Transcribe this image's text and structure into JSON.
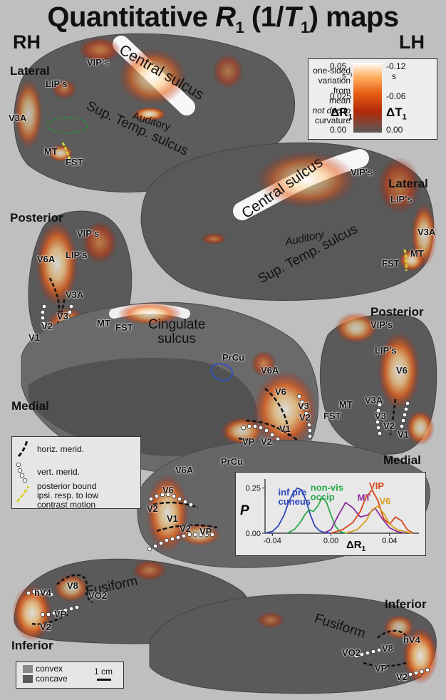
{
  "title": {
    "main": "Quantitative ",
    "r": "R",
    "r_sub": "1",
    "mid": " (1/",
    "t": "T",
    "t_sub": "1",
    "end": ") maps"
  },
  "hemispheres": {
    "right": "RH",
    "left": "LH"
  },
  "views": {
    "rh_lateral": "Lateral",
    "lh_lateral": "Lateral",
    "rh_posterior": "Posterior",
    "lh_posterior": "Posterior",
    "rh_medial": "Medial",
    "lh_medial": "Medial",
    "rh_inferior": "Inferior",
    "lh_inferior": "Inferior"
  },
  "colorbar": {
    "description": [
      "one-sided",
      "variation",
      "from mean",
      "not due to",
      "curvature"
    ],
    "r_ticks": [
      "0.05",
      "0.025",
      "0.00"
    ],
    "r_unit": "s⁻¹",
    "t_ticks": [
      "-0.12",
      "-0.06",
      "0.00"
    ],
    "t_unit": "s",
    "r_label": "ΔR",
    "r_label_sub": "1",
    "t_label": "ΔT",
    "t_label_sub": "1",
    "colors": [
      "#5a5a5a",
      "#b02a0a",
      "#e65a10",
      "#ffb060",
      "#ffffff"
    ]
  },
  "sulci": {
    "rh_central": "Central sulcus",
    "rh_sts": "Sup. Temp. sulcus",
    "rh_auditory": "Auditory",
    "lh_central": "Central sulcus",
    "lh_sts": "Sup. Temp. sulcus",
    "lh_auditory": "Auditory",
    "cingulate": "Cingulate\nsulcus",
    "rh_fusiform": "Fusiform",
    "lh_fusiform": "Fusiform"
  },
  "areas": {
    "rh_lat": [
      "VIP's",
      "LIP's",
      "V3A",
      "MT",
      "FST"
    ],
    "lh_lat": [
      "VIP's",
      "LIP's",
      "V3A",
      "MT",
      "FST"
    ],
    "rh_post": [
      "VIP's",
      "V6A",
      "LIP's",
      "V3A",
      "V3",
      "V2",
      "V1",
      "MT",
      "FST"
    ],
    "lh_post": [
      "VIP's",
      "LIP's",
      "V6",
      "MT",
      "V3A",
      "V3",
      "V2",
      "V1",
      "FST"
    ],
    "medial": [
      "PrCu",
      "V6A",
      "V6",
      "V3",
      "V2",
      "V1",
      "VP",
      "V2",
      "PrCu"
    ],
    "medial2": [
      "V6A",
      "V6",
      "V2",
      "V1",
      "V2",
      "VP"
    ],
    "rh_inf": [
      "hV4",
      "V8",
      "VO2",
      "VP",
      "V2"
    ],
    "lh_inf": [
      "hV4",
      "V8",
      "VO2",
      "VP",
      "V2"
    ]
  },
  "legend": {
    "horiz": "horiz. merid.",
    "vert": "vert. merid.",
    "bound": [
      "posterior bound",
      "ipsi. resp. to low",
      "contrast motion"
    ]
  },
  "convex_legend": {
    "convex": "convex",
    "concave": "concave",
    "scale": "1 cm"
  },
  "chart_data": {
    "type": "line",
    "ylabel": "P",
    "xlabel": "ΔR",
    "xlabel_sub": "1",
    "x_ticks": [
      -0.04,
      0.0,
      0.04
    ],
    "x_tick_labels": [
      "-0.04",
      "0.00",
      "0.04"
    ],
    "y_ticks": [
      0.0,
      0.25
    ],
    "y_tick_labels": [
      "0.00",
      "0.25"
    ],
    "xlim": [
      -0.045,
      0.06
    ],
    "ylim": [
      0,
      0.3
    ],
    "series": [
      {
        "name": "inf pre\ncuneus",
        "color": "#2f47b8",
        "x": [
          -0.045,
          -0.04,
          -0.036,
          -0.032,
          -0.029,
          -0.026,
          -0.023,
          -0.02,
          -0.017,
          -0.014,
          -0.011,
          -0.008,
          -0.005,
          0.0
        ],
        "y": [
          0.0,
          0.01,
          0.04,
          0.1,
          0.17,
          0.22,
          0.25,
          0.24,
          0.18,
          0.1,
          0.04,
          0.015,
          0.005,
          0.0
        ]
      },
      {
        "name": "non-vis\noccip",
        "color": "#2aa84a",
        "x": [
          -0.03,
          -0.025,
          -0.021,
          -0.018,
          -0.015,
          -0.012,
          -0.009,
          -0.006,
          -0.003,
          0.0,
          0.003,
          0.006,
          0.01
        ],
        "y": [
          0.0,
          0.02,
          0.06,
          0.1,
          0.13,
          0.12,
          0.15,
          0.2,
          0.17,
          0.1,
          0.04,
          0.01,
          0.0
        ]
      },
      {
        "name": "MT",
        "color": "#8a2a9a",
        "x": [
          -0.005,
          0.0,
          0.005,
          0.01,
          0.015,
          0.02,
          0.025,
          0.03,
          0.035,
          0.04,
          0.045,
          0.05
        ],
        "y": [
          0.0,
          0.02,
          0.1,
          0.17,
          0.14,
          0.09,
          0.1,
          0.14,
          0.08,
          0.03,
          0.01,
          0.0
        ]
      },
      {
        "name": "VIP",
        "color": "#d8451a",
        "x": [
          0.0,
          0.008,
          0.015,
          0.02,
          0.024,
          0.028,
          0.032,
          0.036,
          0.04,
          0.044,
          0.048,
          0.052,
          0.056
        ],
        "y": [
          0.0,
          0.02,
          0.06,
          0.12,
          0.2,
          0.24,
          0.18,
          0.08,
          0.05,
          0.09,
          0.07,
          0.02,
          0.0
        ]
      },
      {
        "name": "V6",
        "color": "#d8a020",
        "x": [
          0.01,
          0.018,
          0.024,
          0.028,
          0.032,
          0.036,
          0.04,
          0.045,
          0.05,
          0.055
        ],
        "y": [
          0.0,
          0.02,
          0.07,
          0.13,
          0.15,
          0.11,
          0.05,
          0.02,
          0.01,
          0.0
        ]
      }
    ]
  }
}
